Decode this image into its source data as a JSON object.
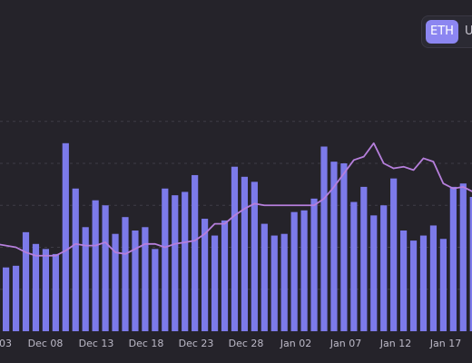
{
  "toggle": {
    "options": [
      {
        "label": "ETH",
        "active": true
      },
      {
        "label": "U",
        "active": false
      }
    ]
  },
  "chart_data": {
    "type": "bar",
    "series": [
      {
        "type": "bar",
        "color": "#7c7aea",
        "values": [
          0.38,
          0.39,
          0.59,
          0.52,
          0.49,
          0.46,
          1.12,
          0.85,
          0.62,
          0.78,
          0.75,
          0.58,
          0.68,
          0.6,
          0.62,
          0.49,
          0.85,
          0.81,
          0.83,
          0.93,
          0.67,
          0.57,
          0.66,
          0.98,
          0.92,
          0.89,
          0.64,
          0.57,
          0.58,
          0.71,
          0.72,
          0.79,
          1.1,
          1.01,
          1.0,
          0.77,
          0.86,
          0.69,
          0.75,
          0.91,
          0.6,
          0.54,
          0.57,
          0.63,
          0.55,
          0.86,
          0.88,
          0.8
        ]
      },
      {
        "type": "line",
        "color": "#b67fdc",
        "values": [
          0.52,
          0.5,
          0.47,
          0.45,
          0.45,
          0.45,
          0.48,
          0.52,
          0.51,
          0.51,
          0.53,
          0.47,
          0.46,
          0.49,
          0.52,
          0.52,
          0.5,
          0.52,
          0.53,
          0.54,
          0.58,
          0.64,
          0.64,
          0.69,
          0.73,
          0.76,
          0.75,
          0.75,
          0.75,
          0.75,
          0.75,
          0.75,
          0.79,
          0.86,
          0.94,
          1.02,
          1.04,
          1.12,
          1.0,
          0.97,
          0.98,
          0.96,
          1.03,
          1.01,
          0.88,
          0.85,
          0.86,
          0.83
        ]
      }
    ],
    "x_ticks": [
      "03",
      "Dec 08",
      "Dec 13",
      "Dec 18",
      "Dec 23",
      "Dec 28",
      "Jan 02",
      "Jan 07",
      "Jan 12",
      "Jan 17"
    ],
    "grid": true
  }
}
